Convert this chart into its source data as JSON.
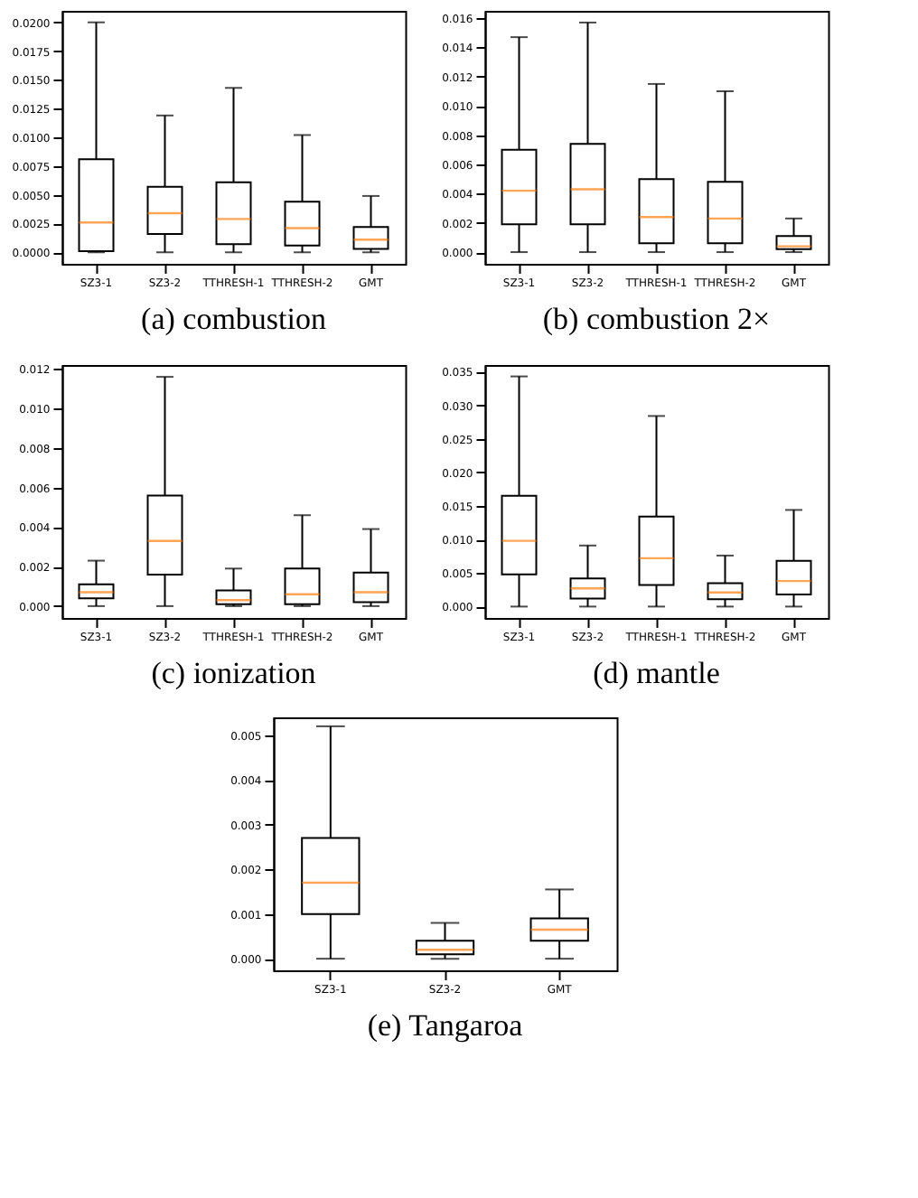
{
  "chart_data": [
    {
      "type": "box",
      "title": "(a) combustion",
      "categories": [
        "SZ3-1",
        "SZ3-2",
        "TTHRESH-1",
        "TTHRESH-2",
        "GMT"
      ],
      "grid": false,
      "boxes": [
        {
          "low": 0,
          "q1": 0.0001,
          "median": 0.0026,
          "q3": 0.0081,
          "high": 0.02
        },
        {
          "low": 0,
          "q1": 0.0016,
          "median": 0.0034,
          "q3": 0.0057,
          "high": 0.0119
        },
        {
          "low": 0,
          "q1": 0.0007,
          "median": 0.0029,
          "q3": 0.0061,
          "high": 0.0143
        },
        {
          "low": 0,
          "q1": 0.0006,
          "median": 0.0021,
          "q3": 0.0044,
          "high": 0.0102
        },
        {
          "low": 0,
          "q1": 0.0003,
          "median": 0.0011,
          "q3": 0.0022,
          "high": 0.0049
        }
      ],
      "ylim": [
        -0.001,
        0.021
      ],
      "yticks": [
        {
          "value": 0,
          "label": "0.0000"
        },
        {
          "value": 0.0025,
          "label": "0.0025"
        },
        {
          "value": 0.005,
          "label": "0.0050"
        },
        {
          "value": 0.0075,
          "label": "0.0075"
        },
        {
          "value": 0.01,
          "label": "0.0100"
        },
        {
          "value": 0.0125,
          "label": "0.0125"
        },
        {
          "value": 0.015,
          "label": "0.0150"
        },
        {
          "value": 0.0175,
          "label": "0.0175"
        },
        {
          "value": 0.02,
          "label": "0.0200"
        }
      ]
    },
    {
      "type": "box",
      "title": "(b) combustion 2×",
      "categories": [
        "SZ3-1",
        "SZ3-2",
        "TTHRESH-1",
        "TTHRESH-2",
        "GMT"
      ],
      "grid": false,
      "boxes": [
        {
          "low": 0,
          "q1": 0.0019,
          "median": 0.0042,
          "q3": 0.007,
          "high": 0.0147
        },
        {
          "low": 0,
          "q1": 0.0019,
          "median": 0.0043,
          "q3": 0.0074,
          "high": 0.0157
        },
        {
          "low": 0,
          "q1": 0.0006,
          "median": 0.0024,
          "q3": 0.005,
          "high": 0.0115
        },
        {
          "low": 0,
          "q1": 0.0006,
          "median": 0.0023,
          "q3": 0.0048,
          "high": 0.011
        },
        {
          "low": 0,
          "q1": 0.0002,
          "median": 0.0004,
          "q3": 0.0011,
          "high": 0.0023
        }
      ],
      "ylim": [
        -0.0008,
        0.0165
      ],
      "yticks": [
        {
          "value": 0,
          "label": "0.000"
        },
        {
          "value": 0.002,
          "label": "0.002"
        },
        {
          "value": 0.004,
          "label": "0.004"
        },
        {
          "value": 0.006,
          "label": "0.006"
        },
        {
          "value": 0.008,
          "label": "0.008"
        },
        {
          "value": 0.01,
          "label": "0.010"
        },
        {
          "value": 0.012,
          "label": "0.012"
        },
        {
          "value": 0.014,
          "label": "0.014"
        },
        {
          "value": 0.016,
          "label": "0.016"
        }
      ]
    },
    {
      "type": "box",
      "title": "(c) ionization",
      "categories": [
        "SZ3-1",
        "SZ3-2",
        "TTHRESH-1",
        "TTHRESH-2",
        "GMT"
      ],
      "grid": false,
      "boxes": [
        {
          "low": 0,
          "q1": 0.0004,
          "median": 0.0007,
          "q3": 0.0011,
          "high": 0.0023
        },
        {
          "low": 0,
          "q1": 0.0016,
          "median": 0.0033,
          "q3": 0.0056,
          "high": 0.0116
        },
        {
          "low": 0,
          "q1": 0.0001,
          "median": 0.0003,
          "q3": 0.0008,
          "high": 0.0019
        },
        {
          "low": 0,
          "q1": 0.0001,
          "median": 0.0006,
          "q3": 0.0019,
          "high": 0.0046
        },
        {
          "low": 0,
          "q1": 0.0002,
          "median": 0.0007,
          "q3": 0.0017,
          "high": 0.0039
        }
      ],
      "ylim": [
        -0.0006,
        0.0122
      ],
      "yticks": [
        {
          "value": 0,
          "label": "0.000"
        },
        {
          "value": 0.002,
          "label": "0.002"
        },
        {
          "value": 0.004,
          "label": "0.004"
        },
        {
          "value": 0.006,
          "label": "0.006"
        },
        {
          "value": 0.008,
          "label": "0.008"
        },
        {
          "value": 0.01,
          "label": "0.010"
        },
        {
          "value": 0.012,
          "label": "0.012"
        }
      ]
    },
    {
      "type": "box",
      "title": "(d) mantle",
      "categories": [
        "SZ3-1",
        "SZ3-2",
        "TTHRESH-1",
        "TTHRESH-2",
        "GMT"
      ],
      "grid": false,
      "boxes": [
        {
          "low": 0,
          "q1": 0.0048,
          "median": 0.0098,
          "q3": 0.0165,
          "high": 0.0343
        },
        {
          "low": 0,
          "q1": 0.0012,
          "median": 0.0027,
          "q3": 0.0042,
          "high": 0.0091
        },
        {
          "low": 0,
          "q1": 0.0032,
          "median": 0.0072,
          "q3": 0.0134,
          "high": 0.0284
        },
        {
          "low": 0,
          "q1": 0.0011,
          "median": 0.0021,
          "q3": 0.0035,
          "high": 0.0076
        },
        {
          "low": 0,
          "q1": 0.0018,
          "median": 0.0038,
          "q3": 0.0068,
          "high": 0.0144
        }
      ],
      "ylim": [
        -0.0017,
        0.036
      ],
      "yticks": [
        {
          "value": 0,
          "label": "0.000"
        },
        {
          "value": 0.005,
          "label": "0.005"
        },
        {
          "value": 0.01,
          "label": "0.010"
        },
        {
          "value": 0.015,
          "label": "0.015"
        },
        {
          "value": 0.02,
          "label": "0.020"
        },
        {
          "value": 0.025,
          "label": "0.025"
        },
        {
          "value": 0.03,
          "label": "0.030"
        },
        {
          "value": 0.035,
          "label": "0.035"
        }
      ]
    },
    {
      "type": "box",
      "title": "(e) Tangaroa",
      "categories": [
        "SZ3-1",
        "SZ3-2",
        "GMT"
      ],
      "grid": false,
      "boxes": [
        {
          "low": 0,
          "q1": 0.001,
          "median": 0.0017,
          "q3": 0.0027,
          "high": 0.0052
        },
        {
          "low": 0,
          "q1": 0.0001,
          "median": 0.0002,
          "q3": 0.0004,
          "high": 0.0008
        },
        {
          "low": 0,
          "q1": 0.0004,
          "median": 0.00065,
          "q3": 0.0009,
          "high": 0.00155
        }
      ],
      "ylim": [
        -0.00026,
        0.0054
      ],
      "yticks": [
        {
          "value": 0,
          "label": "0.000"
        },
        {
          "value": 0.001,
          "label": "0.001"
        },
        {
          "value": 0.002,
          "label": "0.002"
        },
        {
          "value": 0.003,
          "label": "0.003"
        },
        {
          "value": 0.004,
          "label": "0.004"
        },
        {
          "value": 0.005,
          "label": "0.005"
        }
      ]
    }
  ]
}
